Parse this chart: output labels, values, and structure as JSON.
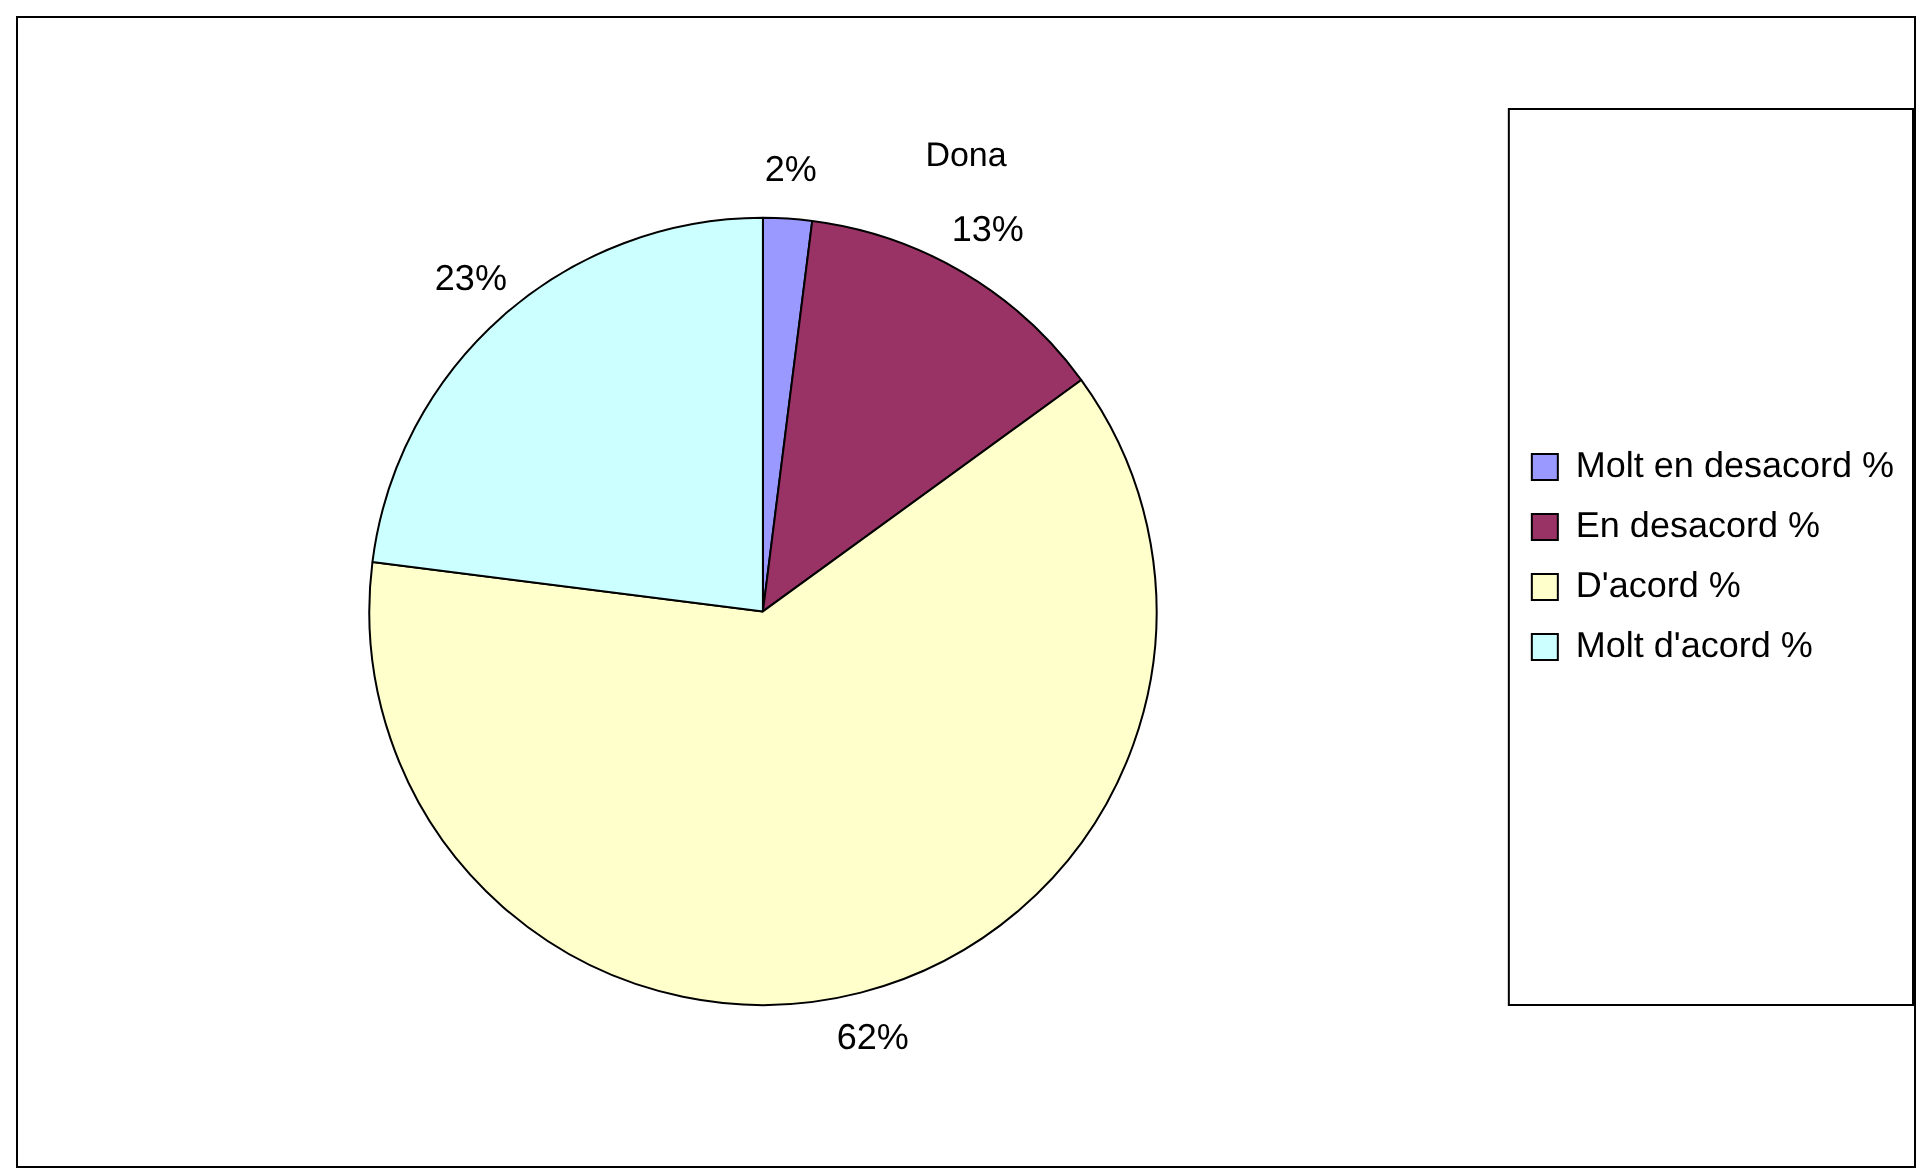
{
  "chart_data": {
    "type": "pie",
    "title": "Dona",
    "categories": [
      "Molt en desacord %",
      "En desacord %",
      "D'acord %",
      "Molt d'acord %"
    ],
    "values": [
      2,
      13,
      62,
      23
    ],
    "colors": [
      "#9999ff",
      "#993366",
      "#ffffcc",
      "#ccffff"
    ],
    "value_labels": [
      "2%",
      "13%",
      "62%",
      "23%"
    ],
    "legend": "right"
  }
}
